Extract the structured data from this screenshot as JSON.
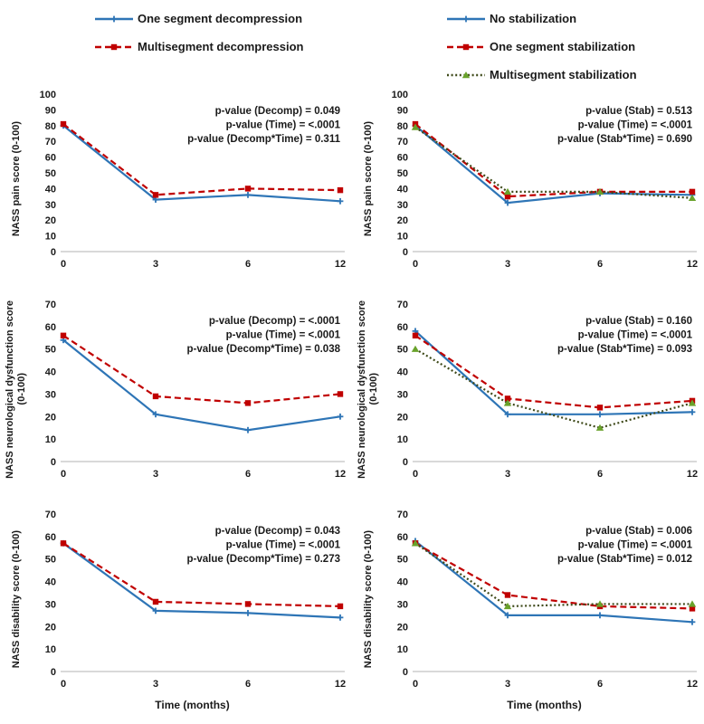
{
  "figure": {
    "x_axis_title": "Time (months)",
    "x_categories": [
      "0",
      "3",
      "6",
      "12"
    ]
  },
  "colors": {
    "blue": "#2e75b6",
    "red": "#c00000",
    "green_line": "#3f4a1a",
    "green_marker": "#69a22b",
    "axis": "#d9d9d9",
    "text": "#1a1a1a"
  },
  "legends": {
    "decompression": {
      "items": [
        {
          "label": "One segment decompression",
          "line_color": "#2e75b6",
          "marker": "plus",
          "marker_color": "#2e75b6",
          "dash": ""
        },
        {
          "label": "Multisegment decompression",
          "line_color": "#c00000",
          "marker": "square",
          "marker_color": "#c00000",
          "dash": "7,4"
        }
      ]
    },
    "stabilization": {
      "items": [
        {
          "label": "No stabilization",
          "line_color": "#2e75b6",
          "marker": "plus",
          "marker_color": "#2e75b6",
          "dash": ""
        },
        {
          "label": "One segment stabilization",
          "line_color": "#c00000",
          "marker": "square",
          "marker_color": "#c00000",
          "dash": "7,4"
        },
        {
          "label": "Multisegment stabilization",
          "line_color": "#3f4a1a",
          "marker": "triangle",
          "marker_color": "#69a22b",
          "dash": "2,2.6"
        }
      ]
    }
  },
  "chart_data": [
    {
      "type": "line",
      "name": "chart-pain-decompression",
      "ylabel_lines": [
        "NASS pain score (0-100)"
      ],
      "ylim": [
        0,
        100
      ],
      "ytick_step": 10,
      "x": [
        "0",
        "3",
        "6",
        "12"
      ],
      "series": [
        {
          "name": "One segment decompression",
          "values": [
            80,
            33,
            36,
            32
          ],
          "line_color": "#2e75b6",
          "marker": "plus",
          "marker_color": "#2e75b6",
          "dash": ""
        },
        {
          "name": "Multisegment decompression",
          "values": [
            81,
            36,
            40,
            39
          ],
          "line_color": "#c00000",
          "marker": "square",
          "marker_color": "#c00000",
          "dash": "7,4"
        }
      ],
      "p_values": [
        "p-value (Decomp) = 0.049",
        "p-value (Time) = <.0001",
        "p-value (Decomp*Time) = 0.311"
      ]
    },
    {
      "type": "line",
      "name": "chart-pain-stabilization",
      "ylabel_lines": [
        "NASS pain score (0-100)"
      ],
      "ylim": [
        0,
        100
      ],
      "ytick_step": 10,
      "x": [
        "0",
        "3",
        "6",
        "12"
      ],
      "series": [
        {
          "name": "No stabilization",
          "values": [
            80,
            31,
            37,
            36
          ],
          "line_color": "#2e75b6",
          "marker": "plus",
          "marker_color": "#2e75b6",
          "dash": ""
        },
        {
          "name": "One segment stabilization",
          "values": [
            81,
            35,
            38,
            38
          ],
          "line_color": "#c00000",
          "marker": "square",
          "marker_color": "#c00000",
          "dash": "7,4"
        },
        {
          "name": "Multisegment stabilization",
          "values": [
            79,
            38,
            38,
            34
          ],
          "line_color": "#3f4a1a",
          "marker": "triangle",
          "marker_color": "#69a22b",
          "dash": "2,2.6"
        }
      ],
      "p_values": [
        "p-value (Stab) = 0.513",
        "p-value (Time) = <.0001",
        "p-value (Stab*Time) = 0.690"
      ]
    },
    {
      "type": "line",
      "name": "chart-neuro-decompression",
      "ylabel_lines": [
        "NASS neurological dysfunction score",
        "(0-100)"
      ],
      "ylim": [
        0,
        70
      ],
      "ytick_step": 10,
      "x": [
        "0",
        "3",
        "6",
        "12"
      ],
      "series": [
        {
          "name": "One segment decompression",
          "values": [
            54,
            21,
            14,
            20
          ],
          "line_color": "#2e75b6",
          "marker": "plus",
          "marker_color": "#2e75b6",
          "dash": ""
        },
        {
          "name": "Multisegment decompression",
          "values": [
            56,
            29,
            26,
            30
          ],
          "line_color": "#c00000",
          "marker": "square",
          "marker_color": "#c00000",
          "dash": "7,4"
        }
      ],
      "p_values": [
        "p-value (Decomp) = <.0001",
        "p-value (Time) = <.0001",
        "p-value (Decomp*Time) = 0.038"
      ]
    },
    {
      "type": "line",
      "name": "chart-neuro-stabilization",
      "ylabel_lines": [
        "NASS neurological dysfunction score",
        "(0-100)"
      ],
      "ylim": [
        0,
        70
      ],
      "ytick_step": 10,
      "x": [
        "0",
        "3",
        "6",
        "12"
      ],
      "series": [
        {
          "name": "No stabilization",
          "values": [
            58,
            21,
            21,
            22
          ],
          "line_color": "#2e75b6",
          "marker": "plus",
          "marker_color": "#2e75b6",
          "dash": ""
        },
        {
          "name": "One segment stabilization",
          "values": [
            56,
            28,
            24,
            27
          ],
          "line_color": "#c00000",
          "marker": "square",
          "marker_color": "#c00000",
          "dash": "7,4"
        },
        {
          "name": "Multisegment stabilization",
          "values": [
            50,
            26,
            15,
            26
          ],
          "line_color": "#3f4a1a",
          "marker": "triangle",
          "marker_color": "#69a22b",
          "dash": "2,2.6"
        }
      ],
      "p_values": [
        "p-value (Stab) = 0.160",
        "p-value (Time) = <.0001",
        "p-value (Stab*Time) = 0.093"
      ]
    },
    {
      "type": "line",
      "name": "chart-disability-decompression",
      "ylabel_lines": [
        "NASS disability score (0-100)"
      ],
      "ylim": [
        0,
        70
      ],
      "ytick_step": 10,
      "x": [
        "0",
        "3",
        "6",
        "12"
      ],
      "xlabel": "Time (months)",
      "series": [
        {
          "name": "One segment decompression",
          "values": [
            57,
            27,
            26,
            24
          ],
          "line_color": "#2e75b6",
          "marker": "plus",
          "marker_color": "#2e75b6",
          "dash": ""
        },
        {
          "name": "Multisegment decompression",
          "values": [
            57,
            31,
            30,
            29
          ],
          "line_color": "#c00000",
          "marker": "square",
          "marker_color": "#c00000",
          "dash": "7,4"
        }
      ],
      "p_values": [
        "p-value (Decomp) = 0.043",
        "p-value (Time) = <.0001",
        "p-value (Decomp*Time) = 0.273"
      ]
    },
    {
      "type": "line",
      "name": "chart-disability-stabilization",
      "ylabel_lines": [
        "NASS disability score (0-100)"
      ],
      "ylim": [
        0,
        70
      ],
      "ytick_step": 10,
      "x": [
        "0",
        "3",
        "6",
        "12"
      ],
      "xlabel": "Time (months)",
      "series": [
        {
          "name": "No stabilization",
          "values": [
            58,
            25,
            25,
            22
          ],
          "line_color": "#2e75b6",
          "marker": "plus",
          "marker_color": "#2e75b6",
          "dash": ""
        },
        {
          "name": "One segment stabilization",
          "values": [
            57,
            34,
            29,
            28
          ],
          "line_color": "#c00000",
          "marker": "square",
          "marker_color": "#c00000",
          "dash": "7,4"
        },
        {
          "name": "Multisegment stabilization",
          "values": [
            57,
            29,
            30,
            30
          ],
          "line_color": "#3f4a1a",
          "marker": "triangle",
          "marker_color": "#69a22b",
          "dash": "2,2.6"
        }
      ],
      "p_values": [
        "p-value (Stab) = 0.006",
        "p-value (Time) = <.0001",
        "p-value (Stab*Time) = 0.012"
      ]
    }
  ]
}
